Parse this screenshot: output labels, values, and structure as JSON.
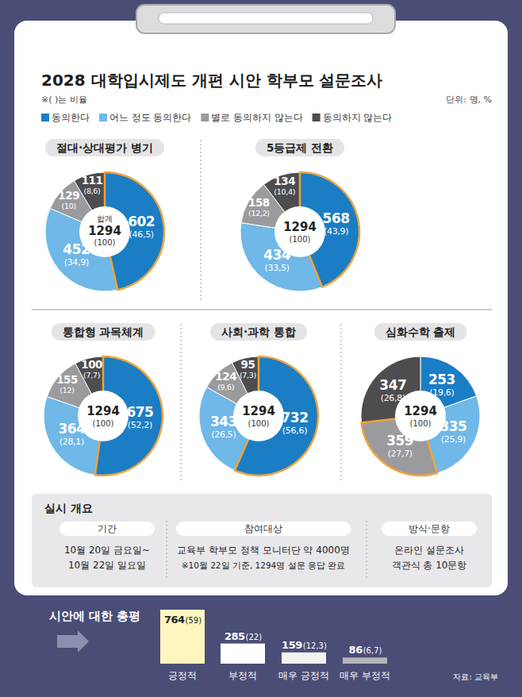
{
  "header": {
    "title": "2028 대학입시제도 개편 시안 학부모 설문조사",
    "note": "※( )는 비율",
    "unit": "단위: 명, %"
  },
  "legend_items": [
    {
      "label": "동의한다",
      "color": "#1b7dc4"
    },
    {
      "label": "어느 정도 동의한다",
      "color": "#6fb8e8"
    },
    {
      "label": "별로 동의하지 않는다",
      "color": "#9b9b9d"
    },
    {
      "label": "동의하지 않는다",
      "color": "#4d4d4f"
    }
  ],
  "chart_data": [
    {
      "type": "pie",
      "title": "절대·상대평가 병기",
      "values": [
        602,
        452,
        129,
        111
      ],
      "percents": [
        46.5,
        34.9,
        10,
        8.6
      ],
      "percent_labels": [
        "(46,5)",
        "(34,9)",
        "(10)",
        "(8,6)"
      ],
      "colors": [
        "#1b7dc4",
        "#6fb8e8",
        "#9b9b9d",
        "#4d4d4f"
      ],
      "data_labels": true,
      "center_label": "합계",
      "total": 1294,
      "total_percent": 100,
      "total_percent_label": "(100)"
    },
    {
      "type": "pie",
      "title": "5등급제 전환",
      "values": [
        568,
        434,
        158,
        134
      ],
      "percents": [
        43.9,
        33.5,
        12.2,
        10.4
      ],
      "percent_labels": [
        "(43,9)",
        "(33,5)",
        "(12,2)",
        "(10,4)"
      ],
      "colors": [
        "#1b7dc4",
        "#6fb8e8",
        "#9b9b9d",
        "#4d4d4f"
      ],
      "data_labels": true,
      "total": 1294,
      "total_percent": 100,
      "total_percent_label": "(100)"
    },
    {
      "type": "pie",
      "title": "통합형 과목체계",
      "values": [
        675,
        364,
        155,
        100
      ],
      "percents": [
        52.2,
        28.1,
        12,
        7.7
      ],
      "percent_labels": [
        "(52,2)",
        "(28,1)",
        "(12)",
        "(7,7)"
      ],
      "colors": [
        "#1b7dc4",
        "#6fb8e8",
        "#9b9b9d",
        "#4d4d4f"
      ],
      "data_labels": true,
      "total": 1294,
      "total_percent": 100,
      "total_percent_label": "(100)"
    },
    {
      "type": "pie",
      "title": "사회·과학 통합",
      "values": [
        732,
        343,
        124,
        95
      ],
      "percents": [
        56.6,
        26.5,
        9.6,
        7.3
      ],
      "percent_labels": [
        "(56,6)",
        "(26,5)",
        "(9,6)",
        "(7,3)"
      ],
      "colors": [
        "#1b7dc4",
        "#6fb8e8",
        "#9b9b9d",
        "#4d4d4f"
      ],
      "data_labels": true,
      "total": 1294,
      "total_percent": 100,
      "total_percent_label": "(100)"
    },
    {
      "type": "pie",
      "title": "심화수학 출제",
      "values": [
        253,
        335,
        359,
        347
      ],
      "percents": [
        19.6,
        25.9,
        27.7,
        26.8
      ],
      "percent_labels": [
        "(19,6)",
        "(25,9)",
        "(27,7)",
        "(26,8)"
      ],
      "colors": [
        "#1b7dc4",
        "#6fb8e8",
        "#9b9b9d",
        "#4d4d4f"
      ],
      "data_labels": true,
      "total": 1294,
      "total_percent": 100,
      "total_percent_label": "(100)"
    },
    {
      "type": "bar",
      "title": "시안에 대한 총평",
      "categories": [
        "긍정적",
        "부정적",
        "매우 긍정적",
        "매우 부정적"
      ],
      "values": [
        764,
        285,
        159,
        86
      ],
      "percents": [
        59,
        22,
        12.3,
        6.7
      ],
      "percent_labels": [
        "(59)",
        "(22)",
        "(12,3)",
        "(6,7)"
      ],
      "colors": [
        "#fff6bf",
        "#ffffff",
        "#f2f2f2",
        "#b5b5b8"
      ],
      "data_labels": true,
      "tick_labels": "x"
    }
  ],
  "overview": {
    "title": "실시 개요",
    "columns": [
      {
        "head": "기간",
        "lines": [
          "10월 20일 금요일~",
          "10월 22일 일요일"
        ]
      },
      {
        "head": "참여대상",
        "lines": [
          "교육부 학부모 정책 모니터단 약 4000명",
          "※10월 22일 기준, 1294명 설문 응답 완료"
        ]
      },
      {
        "head": "방식·문항",
        "lines": [
          "온라인 설문조사",
          "객관식 총 10문항"
        ]
      }
    ]
  },
  "source": "자료: 교육부"
}
